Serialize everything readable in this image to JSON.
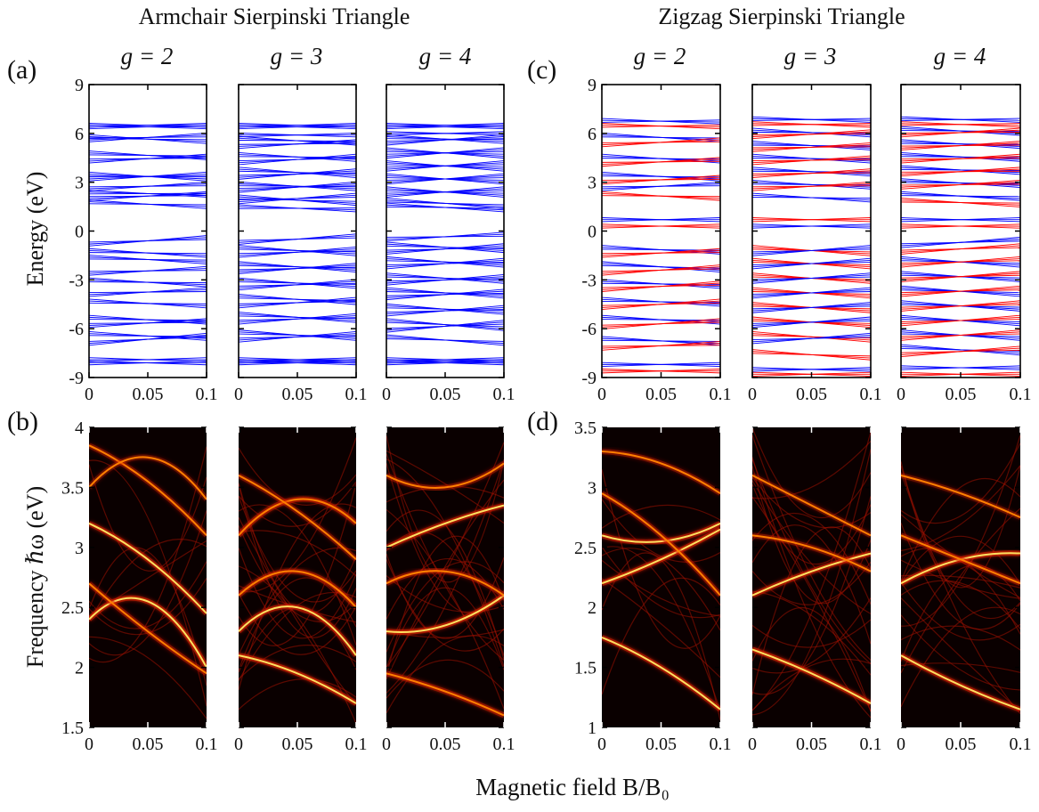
{
  "figure": {
    "group_titles": [
      "Armchair Sierpinski Triangle",
      "Zigzag Sierpinski Triangle"
    ],
    "panel_labels": [
      "(a)",
      "(b)",
      "(c)",
      "(d)"
    ],
    "generation_labels": [
      "g = 2",
      "g = 3",
      "g = 4",
      "g = 2",
      "g = 3",
      "g = 4"
    ],
    "y_label_energy": "Energy (eV)",
    "y_label_frequency": "Frequency ℏω (eV)",
    "x_label": "Magnetic field B/B₀",
    "x_ticks": [
      "0",
      "0.05",
      "0.1"
    ],
    "energy_ticks": [
      "9",
      "6",
      "3",
      "0",
      "-3",
      "-6",
      "-9"
    ],
    "freq_ticks_left": [
      "4",
      "3.5",
      "3",
      "2.5",
      "2",
      "1.5"
    ],
    "freq_ticks_right": [
      "3.5",
      "3",
      "2.5",
      "2",
      "1.5",
      "1"
    ]
  },
  "chart_data": [
    {
      "type": "line",
      "panel": "(a) g = 2",
      "series": [
        {
          "name": "energy levels",
          "color": "#0000ff"
        }
      ],
      "xlim": [
        0,
        0.1
      ],
      "ylim": [
        -9,
        9
      ],
      "bands": [
        [
          6.5,
          6.5
        ],
        [
          6.4,
          6.4
        ],
        [
          5.8,
          5.5
        ],
        [
          5.6,
          5.9
        ],
        [
          4.8,
          4.5
        ],
        [
          4.3,
          4.6
        ],
        [
          3.5,
          3.2
        ],
        [
          3.2,
          3.5
        ],
        [
          2.6,
          2.9
        ],
        [
          2.4,
          2.2
        ],
        [
          2.0,
          2.3
        ],
        [
          1.8,
          1.5
        ],
        [
          -0.8,
          -0.4
        ],
        [
          -1.2,
          -1.5
        ],
        [
          -1.6,
          -1.9
        ],
        [
          -2.6,
          -2.3
        ],
        [
          -3.0,
          -3.3
        ],
        [
          -3.9,
          -3.6
        ],
        [
          -4.3,
          -4.6
        ],
        [
          -5.3,
          -5.6
        ],
        [
          -5.8,
          -5.5
        ],
        [
          -6.3,
          -6.6
        ],
        [
          -6.9,
          -6.4
        ],
        [
          -7.9,
          -7.9
        ],
        [
          -8.1,
          -8.1
        ]
      ]
    },
    {
      "type": "line",
      "panel": "(a) g = 3",
      "series": [
        {
          "name": "energy levels",
          "color": "#0000ff"
        }
      ],
      "xlim": [
        0,
        0.1
      ],
      "ylim": [
        -9,
        9
      ],
      "bands": [
        [
          6.5,
          6.5
        ],
        [
          6.4,
          6.4
        ],
        [
          5.9,
          5.9
        ],
        [
          5.7,
          5.4
        ],
        [
          5.2,
          5.5
        ],
        [
          4.7,
          4.4
        ],
        [
          4.2,
          4.6
        ],
        [
          3.8,
          3.4
        ],
        [
          3.3,
          3.7
        ],
        [
          2.9,
          2.6
        ],
        [
          2.5,
          2.9
        ],
        [
          2.1,
          1.7
        ],
        [
          1.8,
          2.2
        ],
        [
          1.5,
          1.3
        ],
        [
          -0.7,
          -0.3
        ],
        [
          -1.0,
          -1.4
        ],
        [
          -1.5,
          -1.1
        ],
        [
          -2.0,
          -2.4
        ],
        [
          -2.5,
          -2.1
        ],
        [
          -3.0,
          -3.4
        ],
        [
          -3.5,
          -3.1
        ],
        [
          -4.0,
          -4.4
        ],
        [
          -4.6,
          -4.2
        ],
        [
          -5.1,
          -5.5
        ],
        [
          -5.6,
          -5.2
        ],
        [
          -6.2,
          -6.6
        ],
        [
          -6.7,
          -6.3
        ],
        [
          -7.9,
          -7.9
        ],
        [
          -8.0,
          -8.0
        ],
        [
          -8.1,
          -8.1
        ]
      ]
    },
    {
      "type": "line",
      "panel": "(a) g = 4",
      "series": [
        {
          "name": "energy levels",
          "color": "#0000ff"
        }
      ],
      "xlim": [
        0,
        0.1
      ],
      "ylim": [
        -9,
        9
      ],
      "bands": [
        [
          6.5,
          6.5
        ],
        [
          6.4,
          6.4
        ],
        [
          6.0,
          6.0
        ],
        [
          5.8,
          5.5
        ],
        [
          5.4,
          5.8
        ],
        [
          5.0,
          4.6
        ],
        [
          4.6,
          5.0
        ],
        [
          4.2,
          3.8
        ],
        [
          3.8,
          4.2
        ],
        [
          3.4,
          3.0
        ],
        [
          3.0,
          3.4
        ],
        [
          2.6,
          2.2
        ],
        [
          2.2,
          2.6
        ],
        [
          1.9,
          1.5
        ],
        [
          1.6,
          1.3
        ],
        [
          -0.5,
          -0.2
        ],
        [
          -0.8,
          -1.2
        ],
        [
          -1.3,
          -0.9
        ],
        [
          -1.7,
          -2.1
        ],
        [
          -2.2,
          -1.8
        ],
        [
          -2.7,
          -3.1
        ],
        [
          -3.2,
          -2.8
        ],
        [
          -3.6,
          -4.0
        ],
        [
          -4.1,
          -3.7
        ],
        [
          -4.6,
          -5.0
        ],
        [
          -5.1,
          -4.7
        ],
        [
          -5.5,
          -6.0
        ],
        [
          -6.1,
          -5.6
        ],
        [
          -6.5,
          -6.9
        ],
        [
          -7.9,
          -7.9
        ],
        [
          -8.0,
          -8.0
        ],
        [
          -8.1,
          -8.1
        ]
      ]
    },
    {
      "type": "line",
      "panel": "(c) g = 2",
      "series": [
        {
          "name": "energy levels",
          "color": "#0000ff"
        },
        {
          "name": "energy levels",
          "color": "#ff0000"
        }
      ],
      "xlim": [
        0,
        0.1
      ],
      "ylim": [
        -9,
        9
      ],
      "bands": [
        [
          6.8,
          6.7
        ],
        [
          6.5,
          6.4
        ],
        [
          5.9,
          5.6
        ],
        [
          5.3,
          5.6
        ],
        [
          4.6,
          4.3
        ],
        [
          4.1,
          4.4
        ],
        [
          3.5,
          3.2
        ],
        [
          3.0,
          3.3
        ],
        [
          2.6,
          2.9
        ],
        [
          2.3,
          2.0
        ],
        [
          0.7,
          0.7
        ],
        [
          0.3,
          0.3
        ],
        [
          -1.0,
          -1.3
        ],
        [
          -1.5,
          -1.2
        ],
        [
          -2.0,
          -2.4
        ],
        [
          -2.6,
          -2.2
        ],
        [
          -3.1,
          -3.4
        ],
        [
          -3.6,
          -3.2
        ],
        [
          -4.2,
          -4.5
        ],
        [
          -4.7,
          -4.3
        ],
        [
          -5.3,
          -5.6
        ],
        [
          -5.9,
          -5.5
        ],
        [
          -6.6,
          -6.9
        ],
        [
          -7.2,
          -6.9
        ],
        [
          -8.2,
          -8.2
        ],
        [
          -8.6,
          -8.6
        ]
      ]
    },
    {
      "type": "line",
      "panel": "(c) g = 3",
      "series": [
        {
          "name": "energy levels",
          "color": "#0000ff"
        },
        {
          "name": "energy levels",
          "color": "#ff0000"
        }
      ],
      "xlim": [
        0,
        0.1
      ],
      "ylim": [
        -9,
        9
      ],
      "bands": [
        [
          6.9,
          6.8
        ],
        [
          6.6,
          6.5
        ],
        [
          6.2,
          5.9
        ],
        [
          5.8,
          6.1
        ],
        [
          5.4,
          5.1
        ],
        [
          5.0,
          5.3
        ],
        [
          4.6,
          4.3
        ],
        [
          4.2,
          4.5
        ],
        [
          3.8,
          3.5
        ],
        [
          3.4,
          3.7
        ],
        [
          3.0,
          2.7
        ],
        [
          2.6,
          2.9
        ],
        [
          2.2,
          1.9
        ],
        [
          0.7,
          0.7
        ],
        [
          0.3,
          0.3
        ],
        [
          -1.0,
          -1.4
        ],
        [
          -1.4,
          -1.0
        ],
        [
          -1.8,
          -2.2
        ],
        [
          -2.2,
          -1.8
        ],
        [
          -2.7,
          -3.1
        ],
        [
          -3.1,
          -2.7
        ],
        [
          -3.6,
          -4.0
        ],
        [
          -4.0,
          -3.6
        ],
        [
          -4.5,
          -4.9
        ],
        [
          -4.9,
          -4.5
        ],
        [
          -5.4,
          -5.8
        ],
        [
          -5.8,
          -5.4
        ],
        [
          -6.3,
          -6.7
        ],
        [
          -6.8,
          -6.4
        ],
        [
          -7.4,
          -7.8
        ],
        [
          -8.5,
          -8.5
        ],
        [
          -8.8,
          -8.8
        ]
      ]
    },
    {
      "type": "line",
      "panel": "(c) g = 4",
      "series": [
        {
          "name": "energy levels",
          "color": "#0000ff"
        },
        {
          "name": "energy levels",
          "color": "#ff0000"
        }
      ],
      "xlim": [
        0,
        0.1
      ],
      "ylim": [
        -9,
        9
      ],
      "bands": [
        [
          6.9,
          6.8
        ],
        [
          6.6,
          6.5
        ],
        [
          6.3,
          6.0
        ],
        [
          5.9,
          6.2
        ],
        [
          5.5,
          5.2
        ],
        [
          5.1,
          5.4
        ],
        [
          4.7,
          4.4
        ],
        [
          4.3,
          4.6
        ],
        [
          3.9,
          3.6
        ],
        [
          3.5,
          3.8
        ],
        [
          3.1,
          2.8
        ],
        [
          2.7,
          3.0
        ],
        [
          2.3,
          2.0
        ],
        [
          1.9,
          1.6
        ],
        [
          0.7,
          0.7
        ],
        [
          0.3,
          0.3
        ],
        [
          -0.9,
          -0.5
        ],
        [
          -1.3,
          -0.9
        ],
        [
          -1.7,
          -2.1
        ],
        [
          -2.1,
          -1.7
        ],
        [
          -2.6,
          -3.0
        ],
        [
          -3.0,
          -2.6
        ],
        [
          -3.5,
          -3.9
        ],
        [
          -3.9,
          -3.5
        ],
        [
          -4.4,
          -4.8
        ],
        [
          -4.8,
          -4.4
        ],
        [
          -5.3,
          -5.7
        ],
        [
          -5.7,
          -5.3
        ],
        [
          -6.2,
          -6.6
        ],
        [
          -6.6,
          -6.2
        ],
        [
          -7.1,
          -7.5
        ],
        [
          -7.6,
          -7.2
        ],
        [
          -8.4,
          -8.4
        ],
        [
          -8.8,
          -8.8
        ]
      ]
    },
    {
      "type": "heatmap",
      "panel": "(b) g = 2",
      "xlim": [
        0,
        0.1
      ],
      "ylim": [
        1.5,
        4
      ],
      "curves": [
        {
          "x": [
            0,
            0.05,
            0.1
          ],
          "y": [
            2.4,
            2.55,
            2.0
          ],
          "i": 1.0
        },
        {
          "x": [
            0,
            0.05,
            0.1
          ],
          "y": [
            3.2,
            2.9,
            2.45
          ],
          "i": 0.9
        },
        {
          "x": [
            0,
            0.05,
            0.1
          ],
          "y": [
            3.85,
            3.55,
            3.1
          ],
          "i": 0.6
        },
        {
          "x": [
            0,
            0.05,
            0.1
          ],
          "y": [
            2.7,
            2.3,
            1.95
          ],
          "i": 0.7
        },
        {
          "x": [
            0,
            0.05,
            0.1
          ],
          "y": [
            3.5,
            3.75,
            3.4
          ],
          "i": 0.5
        }
      ]
    },
    {
      "type": "heatmap",
      "panel": "(b) g = 3",
      "xlim": [
        0,
        0.1
      ],
      "ylim": [
        1.5,
        4
      ],
      "curves": [
        {
          "x": [
            0,
            0.05,
            0.1
          ],
          "y": [
            2.1,
            1.95,
            1.7
          ],
          "i": 1.0
        },
        {
          "x": [
            0,
            0.05,
            0.1
          ],
          "y": [
            2.3,
            2.5,
            2.1
          ],
          "i": 0.9
        },
        {
          "x": [
            0,
            0.05,
            0.1
          ],
          "y": [
            3.1,
            3.4,
            3.2
          ],
          "i": 0.85
        },
        {
          "x": [
            0,
            0.05,
            0.1
          ],
          "y": [
            2.6,
            2.8,
            2.5
          ],
          "i": 0.8
        },
        {
          "x": [
            0,
            0.05,
            0.1
          ],
          "y": [
            3.6,
            3.3,
            2.9
          ],
          "i": 0.6
        }
      ]
    },
    {
      "type": "heatmap",
      "panel": "(b) g = 4",
      "xlim": [
        0,
        0.1
      ],
      "ylim": [
        1.5,
        4
      ],
      "curves": [
        {
          "x": [
            0,
            0.05,
            0.1
          ],
          "y": [
            2.3,
            2.35,
            2.6
          ],
          "i": 1.0
        },
        {
          "x": [
            0,
            0.05,
            0.1
          ],
          "y": [
            1.95,
            1.8,
            1.6
          ],
          "i": 0.8
        },
        {
          "x": [
            0,
            0.05,
            0.1
          ],
          "y": [
            3.0,
            3.2,
            3.35
          ],
          "i": 0.9
        },
        {
          "x": [
            0,
            0.05,
            0.1
          ],
          "y": [
            2.7,
            2.8,
            2.6
          ],
          "i": 0.7
        },
        {
          "x": [
            0,
            0.05,
            0.1
          ],
          "y": [
            3.6,
            3.5,
            3.7
          ],
          "i": 0.6
        }
      ]
    },
    {
      "type": "heatmap",
      "panel": "(d) g = 2",
      "xlim": [
        0,
        0.1
      ],
      "ylim": [
        1,
        3.5
      ],
      "curves": [
        {
          "x": [
            0,
            0.05,
            0.1
          ],
          "y": [
            2.2,
            2.4,
            2.65
          ],
          "i": 1.0
        },
        {
          "x": [
            0,
            0.05,
            0.1
          ],
          "y": [
            2.6,
            2.55,
            2.7
          ],
          "i": 0.9
        },
        {
          "x": [
            0,
            0.05,
            0.1
          ],
          "y": [
            1.75,
            1.5,
            1.15
          ],
          "i": 0.9
        },
        {
          "x": [
            0,
            0.05,
            0.1
          ],
          "y": [
            2.95,
            2.6,
            2.1
          ],
          "i": 0.7
        },
        {
          "x": [
            0,
            0.05,
            0.1
          ],
          "y": [
            3.3,
            3.2,
            2.95
          ],
          "i": 0.6
        }
      ]
    },
    {
      "type": "heatmap",
      "panel": "(d) g = 3",
      "xlim": [
        0,
        0.1
      ],
      "ylim": [
        1,
        3.5
      ],
      "curves": [
        {
          "x": [
            0,
            0.05,
            0.1
          ],
          "y": [
            1.65,
            1.45,
            1.2
          ],
          "i": 1.0
        },
        {
          "x": [
            0,
            0.05,
            0.1
          ],
          "y": [
            2.1,
            2.3,
            2.45
          ],
          "i": 0.9
        },
        {
          "x": [
            0,
            0.05,
            0.1
          ],
          "y": [
            2.6,
            2.5,
            2.3
          ],
          "i": 0.6
        },
        {
          "x": [
            0,
            0.05,
            0.1
          ],
          "y": [
            3.1,
            2.85,
            2.6
          ],
          "i": 0.5
        }
      ]
    },
    {
      "type": "heatmap",
      "panel": "(d) g = 4",
      "xlim": [
        0,
        0.1
      ],
      "ylim": [
        1,
        3.5
      ],
      "curves": [
        {
          "x": [
            0,
            0.05,
            0.1
          ],
          "y": [
            1.6,
            1.35,
            1.15
          ],
          "i": 0.9
        },
        {
          "x": [
            0,
            0.05,
            0.1
          ],
          "y": [
            2.2,
            2.4,
            2.45
          ],
          "i": 1.0
        },
        {
          "x": [
            0,
            0.05,
            0.1
          ],
          "y": [
            2.6,
            2.4,
            2.2
          ],
          "i": 0.7
        },
        {
          "x": [
            0,
            0.05,
            0.1
          ],
          "y": [
            3.1,
            2.95,
            2.75
          ],
          "i": 0.5
        }
      ]
    }
  ]
}
